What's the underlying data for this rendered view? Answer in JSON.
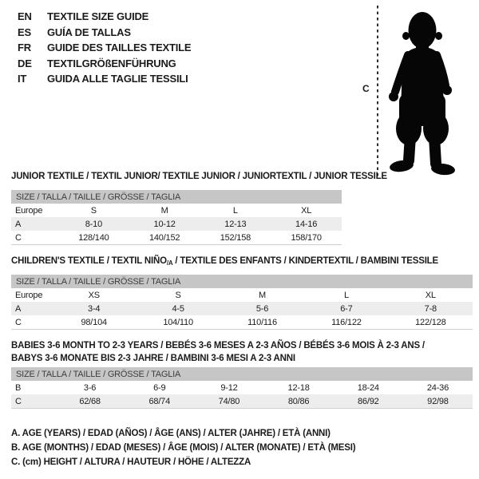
{
  "header": {
    "languages": [
      {
        "code": "EN",
        "title": "TEXTILE SIZE GUIDE"
      },
      {
        "code": "ES",
        "title": "GUÍA DE TALLAS"
      },
      {
        "code": "FR",
        "title": "GUIDE DES TAILLES TEXTILE"
      },
      {
        "code": "DE",
        "title": "TEXTILGRÖßENFÜHRUNG"
      },
      {
        "code": "IT",
        "title": "GUIDA ALLE TAGLIE TESSILI"
      }
    ]
  },
  "figure": {
    "height_label": "C",
    "icon": "toddler-silhouette"
  },
  "colors": {
    "header_bar_bg": "#c6c6c6",
    "header_bar_text": "#3d3d3d",
    "zebra_row_bg": "#ededed",
    "text": "#1b1b1b",
    "silhouette": "#060606"
  },
  "tables": [
    {
      "title": "JUNIOR TEXTILE / TEXTIL JUNIOR/ TEXTILE JUNIOR / JUNIORTEXTIL / JUNIOR TESSILE",
      "header": "SIZE / TALLA / TAILLE / GRÖSSE / TAGLIA",
      "rows": [
        {
          "cells": [
            "Europe",
            "S",
            "M",
            "L",
            "XL"
          ]
        },
        {
          "cells": [
            "A",
            "8-10",
            "10-12",
            "12-13",
            "14-16"
          ]
        },
        {
          "cells": [
            "C",
            "128/140",
            "140/152",
            "152/158",
            "158/170"
          ]
        }
      ]
    },
    {
      "title": {
        "pre": "CHILDREN'S TEXTILE / TEXTIL NIÑO",
        "sub": "/A",
        "post": " / TEXTILE DES ENFANTS / KINDERTEXTIL / BAMBINI TESSILE"
      },
      "header": "SIZE / TALLA / TAILLE / GRÖSSE / TAGLIA",
      "rows": [
        {
          "cells": [
            "Europe",
            "XS",
            "S",
            "M",
            "L",
            "XL"
          ]
        },
        {
          "cells": [
            "A",
            "3-4",
            "4-5",
            "5-6",
            "6-7",
            "7-8"
          ]
        },
        {
          "cells": [
            "C",
            "98/104",
            "104/110",
            "110/116",
            "116/122",
            "122/128"
          ]
        }
      ]
    },
    {
      "title_lines": [
        "BABIES 3-6 MONTH TO 2-3 YEARS / BEBÉS 3-6 MESES A 2-3 AÑOS / BÉBÉS 3-6 MOIS À 2-3 ANS /",
        "BABYS 3-6 MONATE BIS 2-3 JAHRE / BAMBINI 3-6 MESI A 2-3 ANNI"
      ],
      "header": "SIZE / TALLA / TAILLE / GRÖSSE / TAGLIA",
      "rows": [
        {
          "cells": [
            "B",
            "3-6",
            "6-9",
            "9-12",
            "12-18",
            "18-24",
            "24-36"
          ]
        },
        {
          "cells": [
            "C",
            "62/68",
            "68/74",
            "74/80",
            "80/86",
            "86/92",
            "92/98"
          ]
        }
      ]
    }
  ],
  "legend": [
    "A. AGE (YEARS) / EDAD (AÑOS) / ÂGE (ANS) / ALTER (JAHRE) / ETÀ (ANNI)",
    "B. AGE (MONTHS) / EDAD (MESES) / ÂGE (MOIS) / ALTER (MONATE) / ETÀ (MESI)",
    "C. (cm) HEIGHT / ALTURA / HAUTEUR / HÖHE / ALTEZZA"
  ]
}
